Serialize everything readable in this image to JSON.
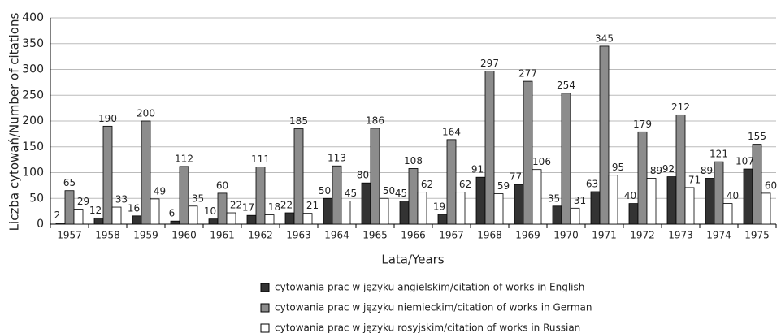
{
  "chart_data": {
    "type": "bar",
    "y_label": "Liczba cytowań/Number of citations",
    "x_label": "Lata/Years",
    "categories": [
      "1957",
      "1958",
      "1959",
      "1960",
      "1961",
      "1962",
      "1963",
      "1964",
      "1965",
      "1966",
      "1967",
      "1968",
      "1969",
      "1970",
      "1971",
      "1972",
      "1973",
      "1974",
      "1975"
    ],
    "series": [
      {
        "name": "cytowania prac w języku angielskim/citation of works in English",
        "color": "#333333",
        "values": [
          2,
          12,
          16,
          6,
          10,
          17,
          22,
          50,
          80,
          45,
          19,
          91,
          77,
          35,
          63,
          40,
          92,
          89,
          107
        ]
      },
      {
        "name": "cytowania prac w języku niemieckim/citation of works in German",
        "color": "#8c8c8c",
        "values": [
          65,
          190,
          200,
          112,
          60,
          111,
          185,
          113,
          186,
          108,
          164,
          297,
          277,
          254,
          345,
          179,
          212,
          121,
          155
        ]
      },
      {
        "name": "cytowania prac w języku rosyjskim/citation of works in Russian",
        "color": "#ffffff",
        "values": [
          29,
          33,
          49,
          35,
          22,
          18,
          21,
          45,
          50,
          62,
          62,
          59,
          106,
          31,
          95,
          89,
          71,
          40,
          60
        ]
      }
    ],
    "ylim": [
      0,
      400
    ],
    "yticks": [
      0,
      50,
      100,
      150,
      200,
      250,
      300,
      350,
      400
    ],
    "grid": true
  }
}
